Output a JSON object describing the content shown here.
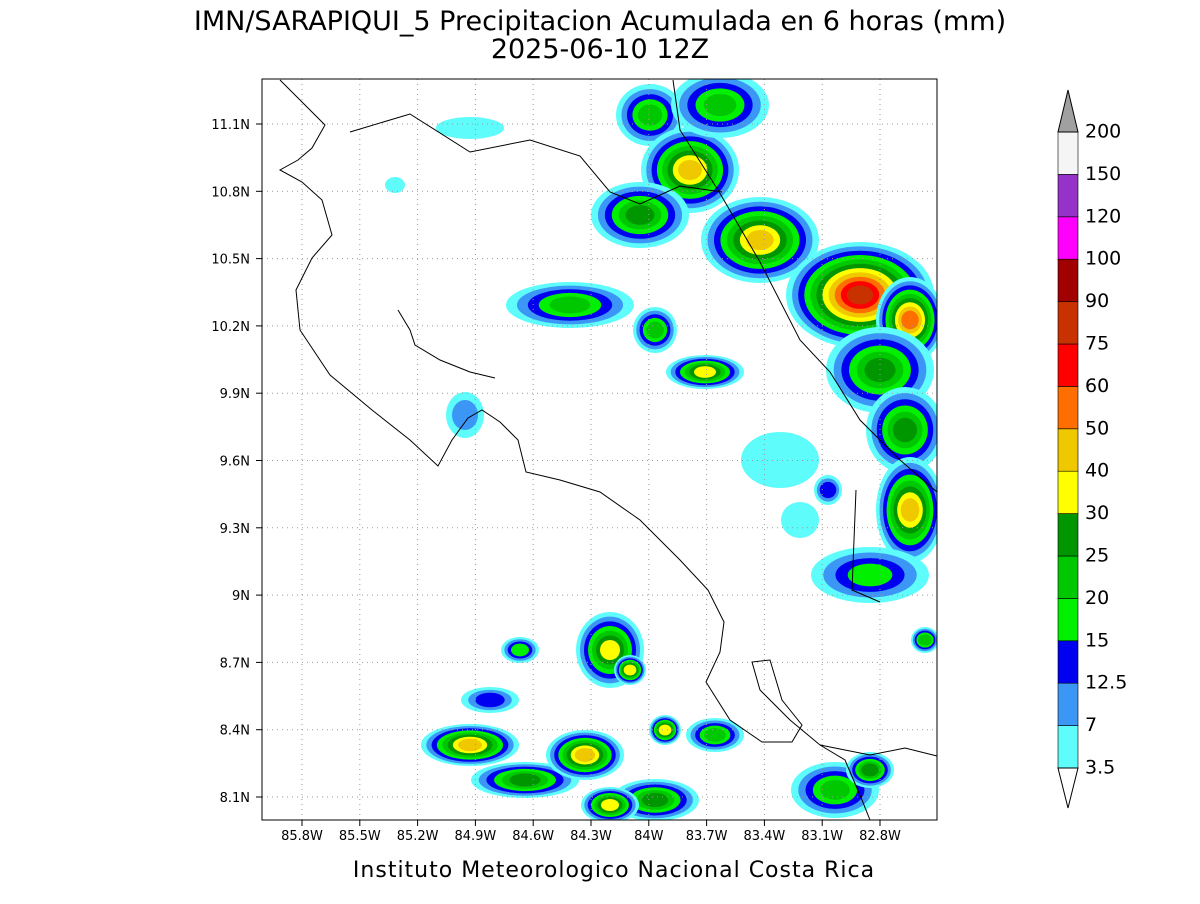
{
  "title": "IMN/SARAPIQUI_5 Precipitacion Acumulada en 6 horas (mm)",
  "subtitle": "2025-06-10 12Z",
  "map": {
    "lon_labels": [
      "85.8W",
      "85.5W",
      "85.2W",
      "84.9W",
      "84.6W",
      "84.3W",
      "84W",
      "83.7W",
      "83.4W",
      "83.1W",
      "82.8W"
    ],
    "lat_labels": [
      "8.1N",
      "8.4N",
      "8.7N",
      "9N",
      "9.3N",
      "9.6N",
      "9.9N",
      "10.2N",
      "10.5N",
      "10.8N",
      "11.1N"
    ]
  },
  "colorbar": {
    "labels": [
      "3.5",
      "7",
      "12.5",
      "15",
      "20",
      "25",
      "30",
      "40",
      "50",
      "60",
      "75",
      "90",
      "100",
      "120",
      "150",
      "200"
    ],
    "colors": [
      "#5ffcfc",
      "#3c96f5",
      "#0000f0",
      "#00f000",
      "#00c800",
      "#009600",
      "#ffff00",
      "#f0c800",
      "#ff6e00",
      "#ff0000",
      "#c83200",
      "#a00000",
      "#ff00ff",
      "#9632c8",
      "#f5f5f5"
    ],
    "below_color": "#ffffff",
    "above_color": "#a0a0a0"
  },
  "footer": "Instituto Meteorologico Nacional Costa Rica"
}
